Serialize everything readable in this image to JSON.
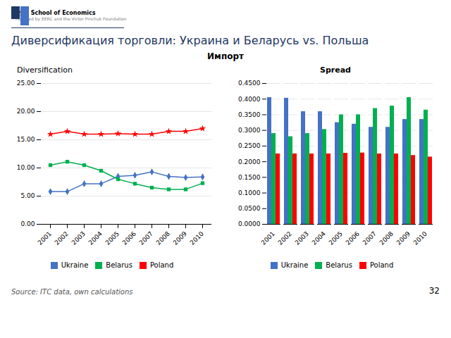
{
  "title": "Диверсификация торговли: Украина и Беларусь vs. Польша",
  "subtitle": "Импорт",
  "annotations": [
    "Kyiv School of Economics",
    "Founded by EERC and the Victor Pinchuk Foundation",
    "Source: ITC data, own calculations",
    "32"
  ],
  "chart_data": [
    {
      "type": "line",
      "title": "Diversification",
      "categories": [
        "2001",
        "2002",
        "2003",
        "2004",
        "2005",
        "2006",
        "2007",
        "2008",
        "2009",
        "2010"
      ],
      "series": [
        {
          "name": "Ukraine",
          "color": "#4472C4",
          "marker": "diamond",
          "values": [
            5.8,
            5.8,
            7.2,
            7.2,
            8.5,
            8.7,
            9.3,
            8.5,
            8.3,
            8.4
          ]
        },
        {
          "name": "Belarus",
          "color": "#00B050",
          "marker": "square",
          "values": [
            10.5,
            11.1,
            10.5,
            9.5,
            8.0,
            7.2,
            6.5,
            6.2,
            6.2,
            7.3
          ]
        },
        {
          "name": "Poland",
          "color": "#FF0000",
          "marker": "star",
          "values": [
            16.0,
            16.5,
            16.0,
            16.0,
            16.1,
            16.0,
            16.0,
            16.5,
            16.5,
            17.0
          ]
        }
      ],
      "ylim": [
        0,
        25
      ],
      "yticks": [
        {
          "value": 0,
          "label": "0.00"
        },
        {
          "value": 5,
          "label": "5.00"
        },
        {
          "value": 10,
          "label": "10.00"
        },
        {
          "value": 15,
          "label": "15.00"
        },
        {
          "value": 20,
          "label": "20.00"
        },
        {
          "value": 25,
          "label": "25.00"
        }
      ],
      "grid": true,
      "legend": "bottom"
    },
    {
      "type": "bar",
      "title": "Spread",
      "categories": [
        "2001",
        "2002",
        "2003",
        "2004",
        "2005",
        "2006",
        "2007",
        "2008",
        "2009",
        "2010"
      ],
      "series": [
        {
          "name": "Ukraine",
          "color": "#4472C4",
          "values": [
            0.405,
            0.403,
            0.36,
            0.36,
            0.325,
            0.32,
            0.31,
            0.31,
            0.335,
            0.335
          ]
        },
        {
          "name": "Belarus",
          "color": "#00B050",
          "values": [
            0.29,
            0.28,
            0.29,
            0.303,
            0.35,
            0.35,
            0.37,
            0.378,
            0.405,
            0.365
          ]
        },
        {
          "name": "Poland",
          "color": "#FF0000",
          "values": [
            0.225,
            0.225,
            0.225,
            0.225,
            0.227,
            0.228,
            0.225,
            0.225,
            0.22,
            0.215
          ]
        }
      ],
      "ylim": [
        0,
        0.45
      ],
      "yticks": [
        {
          "value": 0,
          "label": "0.0000"
        },
        {
          "value": 0.05,
          "label": "0.0500"
        },
        {
          "value": 0.1,
          "label": "0.1000"
        },
        {
          "value": 0.15,
          "label": "0.1500"
        },
        {
          "value": 0.2,
          "label": "0.2000"
        },
        {
          "value": 0.25,
          "label": "0.2500"
        },
        {
          "value": 0.3,
          "label": "0.3000"
        },
        {
          "value": 0.35,
          "label": "0.3500"
        },
        {
          "value": 0.4,
          "label": "0.4000"
        },
        {
          "value": 0.45,
          "label": "0.4500"
        }
      ],
      "grid": true,
      "legend": "bottom"
    }
  ]
}
